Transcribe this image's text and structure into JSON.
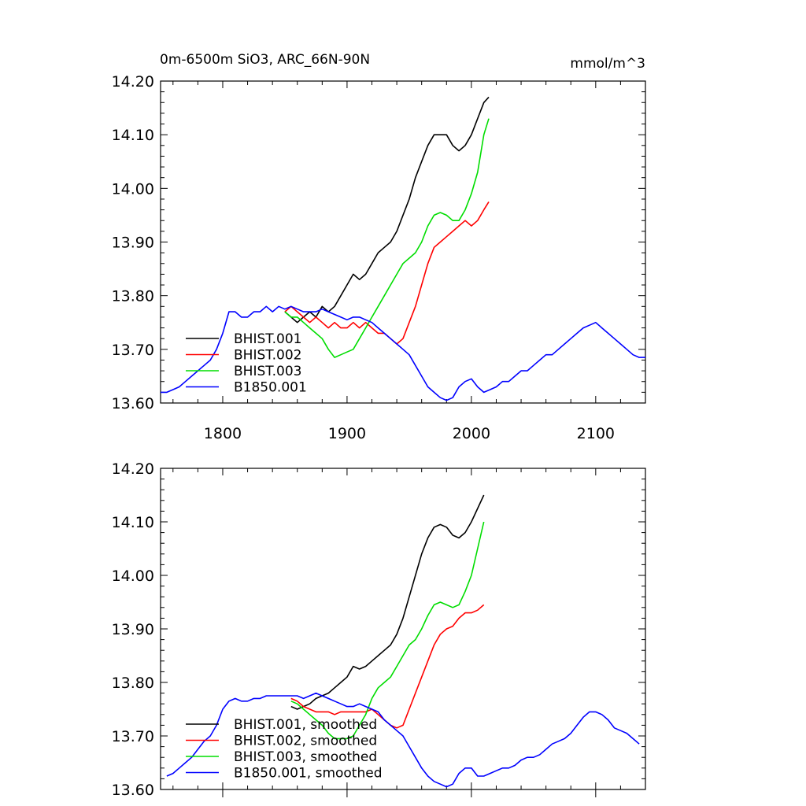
{
  "title_left": "0m-6500m SiO3, ARC_66N-90N",
  "title_right": "mmol/m^3",
  "chart_data": [
    {
      "type": "line",
      "xlim": [
        1750,
        2140
      ],
      "ylim": [
        13.6,
        14.2
      ],
      "xticks": [
        1800,
        1900,
        2000,
        2100
      ],
      "xtick_labels": [
        "1800",
        "1900",
        "2000",
        "2100"
      ],
      "yticks": [
        13.6,
        13.7,
        13.8,
        13.9,
        14.0,
        14.1,
        14.2
      ],
      "ytick_labels": [
        "13.60",
        "13.70",
        "13.80",
        "13.90",
        "14.00",
        "14.10",
        "14.20"
      ],
      "legend_position": "bottom-left",
      "series": [
        {
          "name": "BHIST.001",
          "color": "#000000",
          "x": [
            1850,
            1855,
            1860,
            1865,
            1870,
            1875,
            1880,
            1885,
            1890,
            1895,
            1900,
            1905,
            1910,
            1915,
            1920,
            1925,
            1930,
            1935,
            1940,
            1945,
            1950,
            1955,
            1960,
            1965,
            1970,
            1975,
            1980,
            1985,
            1990,
            1995,
            2000,
            2005,
            2010,
            2014
          ],
          "y": [
            13.77,
            13.76,
            13.75,
            13.76,
            13.77,
            13.76,
            13.78,
            13.77,
            13.78,
            13.8,
            13.82,
            13.84,
            13.83,
            13.84,
            13.86,
            13.88,
            13.89,
            13.9,
            13.92,
            13.95,
            13.98,
            14.02,
            14.05,
            14.08,
            14.1,
            14.1,
            14.1,
            14.08,
            14.07,
            14.08,
            14.1,
            14.13,
            14.16,
            14.17
          ]
        },
        {
          "name": "BHIST.002",
          "color": "#ff0000",
          "x": [
            1850,
            1855,
            1860,
            1865,
            1870,
            1875,
            1880,
            1885,
            1890,
            1895,
            1900,
            1905,
            1910,
            1915,
            1920,
            1925,
            1930,
            1935,
            1940,
            1945,
            1950,
            1955,
            1960,
            1965,
            1970,
            1975,
            1980,
            1985,
            1990,
            1995,
            2000,
            2005,
            2010,
            2014
          ],
          "y": [
            13.77,
            13.78,
            13.77,
            13.76,
            13.75,
            13.76,
            13.75,
            13.74,
            13.75,
            13.74,
            13.74,
            13.75,
            13.74,
            13.75,
            13.74,
            13.73,
            13.73,
            13.72,
            13.71,
            13.72,
            13.75,
            13.78,
            13.82,
            13.86,
            13.89,
            13.9,
            13.91,
            13.92,
            13.93,
            13.94,
            13.93,
            13.94,
            13.96,
            13.975
          ]
        },
        {
          "name": "BHIST.003",
          "color": "#00dd00",
          "x": [
            1850,
            1855,
            1860,
            1865,
            1870,
            1875,
            1880,
            1885,
            1890,
            1895,
            1900,
            1905,
            1910,
            1915,
            1920,
            1925,
            1930,
            1935,
            1940,
            1945,
            1950,
            1955,
            1960,
            1965,
            1970,
            1975,
            1980,
            1985,
            1990,
            1995,
            2000,
            2005,
            2010,
            2014
          ],
          "y": [
            13.77,
            13.76,
            13.76,
            13.75,
            13.74,
            13.73,
            13.72,
            13.7,
            13.685,
            13.69,
            13.695,
            13.7,
            13.72,
            13.74,
            13.76,
            13.78,
            13.8,
            13.82,
            13.84,
            13.86,
            13.87,
            13.88,
            13.9,
            13.93,
            13.95,
            13.955,
            13.95,
            13.94,
            13.94,
            13.96,
            13.99,
            14.03,
            14.1,
            14.13
          ]
        },
        {
          "name": "B1850.001",
          "color": "#0000ff",
          "x": [
            1750,
            1755,
            1760,
            1765,
            1770,
            1775,
            1780,
            1785,
            1790,
            1795,
            1800,
            1805,
            1810,
            1815,
            1820,
            1825,
            1830,
            1835,
            1840,
            1845,
            1850,
            1855,
            1860,
            1865,
            1870,
            1875,
            1880,
            1885,
            1890,
            1895,
            1900,
            1905,
            1910,
            1915,
            1920,
            1925,
            1930,
            1935,
            1940,
            1945,
            1950,
            1955,
            1960,
            1965,
            1970,
            1975,
            1980,
            1985,
            1990,
            1995,
            2000,
            2005,
            2010,
            2015,
            2020,
            2025,
            2030,
            2035,
            2040,
            2045,
            2050,
            2055,
            2060,
            2065,
            2070,
            2075,
            2080,
            2085,
            2090,
            2095,
            2100,
            2105,
            2110,
            2115,
            2120,
            2125,
            2130,
            2135,
            2140
          ],
          "y": [
            13.62,
            13.62,
            13.625,
            13.63,
            13.64,
            13.65,
            13.66,
            13.67,
            13.68,
            13.7,
            13.73,
            13.77,
            13.77,
            13.76,
            13.76,
            13.77,
            13.77,
            13.78,
            13.77,
            13.78,
            13.775,
            13.78,
            13.775,
            13.77,
            13.77,
            13.77,
            13.775,
            13.77,
            13.765,
            13.76,
            13.755,
            13.76,
            13.76,
            13.755,
            13.75,
            13.74,
            13.73,
            13.72,
            13.71,
            13.7,
            13.69,
            13.67,
            13.65,
            13.63,
            13.62,
            13.61,
            13.605,
            13.61,
            13.63,
            13.64,
            13.645,
            13.63,
            13.62,
            13.625,
            13.63,
            13.64,
            13.64,
            13.65,
            13.66,
            13.66,
            13.67,
            13.68,
            13.69,
            13.69,
            13.7,
            13.71,
            13.72,
            13.73,
            13.74,
            13.745,
            13.75,
            13.74,
            13.73,
            13.72,
            13.71,
            13.7,
            13.69,
            13.685,
            13.685
          ]
        }
      ]
    },
    {
      "type": "line",
      "xlim": [
        1750,
        2140
      ],
      "ylim": [
        13.6,
        14.2
      ],
      "xticks": [
        1800,
        1900,
        2000,
        2100
      ],
      "xtick_labels": [],
      "yticks": [
        13.6,
        13.7,
        13.8,
        13.9,
        14.0,
        14.1,
        14.2
      ],
      "ytick_labels": [
        "13.60",
        "13.70",
        "13.80",
        "13.90",
        "14.00",
        "14.10",
        "14.20"
      ],
      "legend_position": "bottom-left",
      "series": [
        {
          "name": "BHIST.001, smoothed",
          "color": "#000000",
          "x": [
            1855,
            1860,
            1865,
            1870,
            1875,
            1880,
            1885,
            1890,
            1895,
            1900,
            1905,
            1910,
            1915,
            1920,
            1925,
            1930,
            1935,
            1940,
            1945,
            1950,
            1955,
            1960,
            1965,
            1970,
            1975,
            1980,
            1985,
            1990,
            1995,
            2000,
            2005,
            2010
          ],
          "y": [
            13.755,
            13.75,
            13.755,
            13.76,
            13.77,
            13.775,
            13.78,
            13.79,
            13.8,
            13.81,
            13.83,
            13.825,
            13.83,
            13.84,
            13.85,
            13.86,
            13.87,
            13.89,
            13.92,
            13.96,
            14.0,
            14.04,
            14.07,
            14.09,
            14.095,
            14.09,
            14.075,
            14.07,
            14.08,
            14.1,
            14.125,
            14.15
          ]
        },
        {
          "name": "BHIST.002, smoothed",
          "color": "#ff0000",
          "x": [
            1855,
            1860,
            1865,
            1870,
            1875,
            1880,
            1885,
            1890,
            1895,
            1900,
            1905,
            1910,
            1915,
            1920,
            1925,
            1930,
            1935,
            1940,
            1945,
            1950,
            1955,
            1960,
            1965,
            1970,
            1975,
            1980,
            1985,
            1990,
            1995,
            2000,
            2005,
            2010
          ],
          "y": [
            13.77,
            13.765,
            13.755,
            13.75,
            13.745,
            13.745,
            13.745,
            13.74,
            13.745,
            13.745,
            13.745,
            13.745,
            13.745,
            13.75,
            13.74,
            13.73,
            13.72,
            13.715,
            13.72,
            13.75,
            13.78,
            13.81,
            13.84,
            13.87,
            13.89,
            13.9,
            13.905,
            13.92,
            13.93,
            13.93,
            13.935,
            13.945
          ]
        },
        {
          "name": "BHIST.003, smoothed",
          "color": "#00dd00",
          "x": [
            1855,
            1860,
            1865,
            1870,
            1875,
            1880,
            1885,
            1890,
            1895,
            1900,
            1905,
            1910,
            1915,
            1920,
            1925,
            1930,
            1935,
            1940,
            1945,
            1950,
            1955,
            1960,
            1965,
            1970,
            1975,
            1980,
            1985,
            1990,
            1995,
            2000,
            2005,
            2010
          ],
          "y": [
            13.765,
            13.76,
            13.75,
            13.74,
            13.73,
            13.72,
            13.705,
            13.695,
            13.695,
            13.695,
            13.7,
            13.72,
            13.74,
            13.77,
            13.79,
            13.8,
            13.81,
            13.83,
            13.85,
            13.87,
            13.88,
            13.9,
            13.925,
            13.945,
            13.95,
            13.945,
            13.94,
            13.945,
            13.97,
            14.0,
            14.05,
            14.1
          ]
        },
        {
          "name": "B1850.001, smoothed",
          "color": "#0000ff",
          "x": [
            1755,
            1760,
            1765,
            1770,
            1775,
            1780,
            1785,
            1790,
            1795,
            1800,
            1805,
            1810,
            1815,
            1820,
            1825,
            1830,
            1835,
            1840,
            1845,
            1850,
            1855,
            1860,
            1865,
            1870,
            1875,
            1880,
            1885,
            1890,
            1895,
            1900,
            1905,
            1910,
            1915,
            1920,
            1925,
            1930,
            1935,
            1940,
            1945,
            1950,
            1955,
            1960,
            1965,
            1970,
            1975,
            1980,
            1985,
            1990,
            1995,
            2000,
            2005,
            2010,
            2015,
            2020,
            2025,
            2030,
            2035,
            2040,
            2045,
            2050,
            2055,
            2060,
            2065,
            2070,
            2075,
            2080,
            2085,
            2090,
            2095,
            2100,
            2105,
            2110,
            2115,
            2120,
            2125,
            2130,
            2135
          ],
          "y": [
            13.625,
            13.63,
            13.64,
            13.65,
            13.66,
            13.675,
            13.69,
            13.7,
            13.72,
            13.75,
            13.765,
            13.77,
            13.765,
            13.765,
            13.77,
            13.77,
            13.775,
            13.775,
            13.775,
            13.775,
            13.775,
            13.775,
            13.77,
            13.775,
            13.78,
            13.775,
            13.77,
            13.765,
            13.76,
            13.755,
            13.755,
            13.76,
            13.755,
            13.75,
            13.745,
            13.73,
            13.72,
            13.71,
            13.7,
            13.68,
            13.66,
            13.64,
            13.625,
            13.615,
            13.61,
            13.605,
            13.61,
            13.63,
            13.64,
            13.64,
            13.625,
            13.625,
            13.63,
            13.635,
            13.64,
            13.64,
            13.645,
            13.655,
            13.66,
            13.66,
            13.665,
            13.675,
            13.685,
            13.69,
            13.695,
            13.705,
            13.72,
            13.735,
            13.745,
            13.745,
            13.74,
            13.73,
            13.715,
            13.71,
            13.705,
            13.695,
            13.685
          ]
        }
      ]
    }
  ]
}
